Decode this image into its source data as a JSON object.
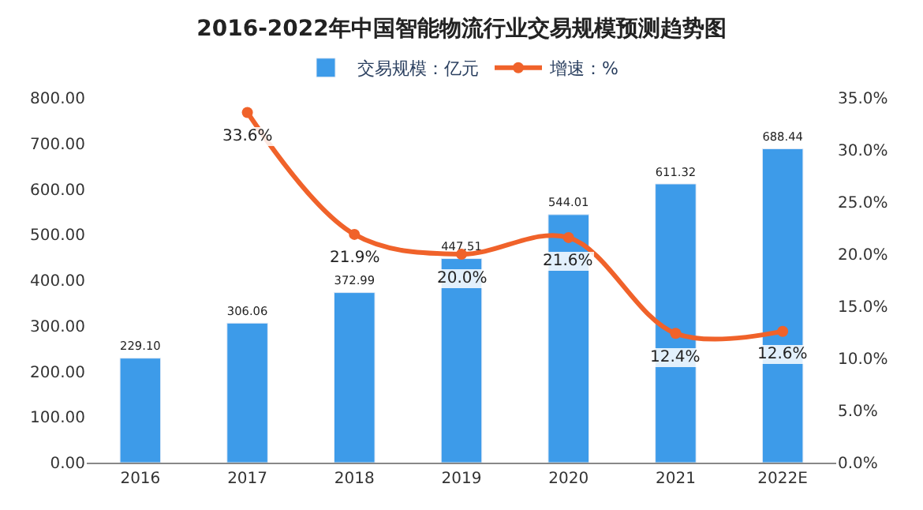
{
  "chart_data": {
    "type": "bar",
    "title": "2016-2022年中国智能物流行业交易规模预测趋势图",
    "categories": [
      "2016",
      "2017",
      "2018",
      "2019",
      "2020",
      "2021",
      "2022E"
    ],
    "series": [
      {
        "name": "交易规模：亿元",
        "color": "#3d9be9",
        "values": [
          229.1,
          306.06,
          372.99,
          447.51,
          544.01,
          611.32,
          688.44
        ],
        "value_labels": [
          "229.10",
          "306.06",
          "372.99",
          "447.51",
          "544.01",
          "611.32",
          "688.44"
        ]
      },
      {
        "name": "增速：%",
        "type": "line",
        "axis": "y2",
        "color": "#f0622a",
        "marker": "circle",
        "values": [
          null,
          33.6,
          21.9,
          20.0,
          21.6,
          12.4,
          12.6
        ],
        "value_labels": [
          null,
          "33.6%",
          "21.9%",
          "20.0%",
          "21.6%",
          "12.4%",
          "12.6%"
        ]
      }
    ],
    "ylim": [
      0,
      800
    ],
    "yticks": [
      {
        "value": 0,
        "label": "0.00"
      },
      {
        "value": 100,
        "label": "100.00"
      },
      {
        "value": 200,
        "label": "200.00"
      },
      {
        "value": 300,
        "label": "300.00"
      },
      {
        "value": 400,
        "label": "400.00"
      },
      {
        "value": 500,
        "label": "500.00"
      },
      {
        "value": 600,
        "label": "600.00"
      },
      {
        "value": 700,
        "label": "700.00"
      },
      {
        "value": 800,
        "label": "800.00"
      }
    ],
    "y2lim": [
      0,
      35
    ],
    "y2ticks": [
      {
        "value": 0,
        "label": "0.0%"
      },
      {
        "value": 5,
        "label": "5.0%"
      },
      {
        "value": 10,
        "label": "10.0%"
      },
      {
        "value": 15,
        "label": "15.0%"
      },
      {
        "value": 20,
        "label": "20.0%"
      },
      {
        "value": 25,
        "label": "25.0%"
      },
      {
        "value": 30,
        "label": "30.0%"
      },
      {
        "value": 35,
        "label": "35.0%"
      }
    ],
    "legend": "top"
  }
}
